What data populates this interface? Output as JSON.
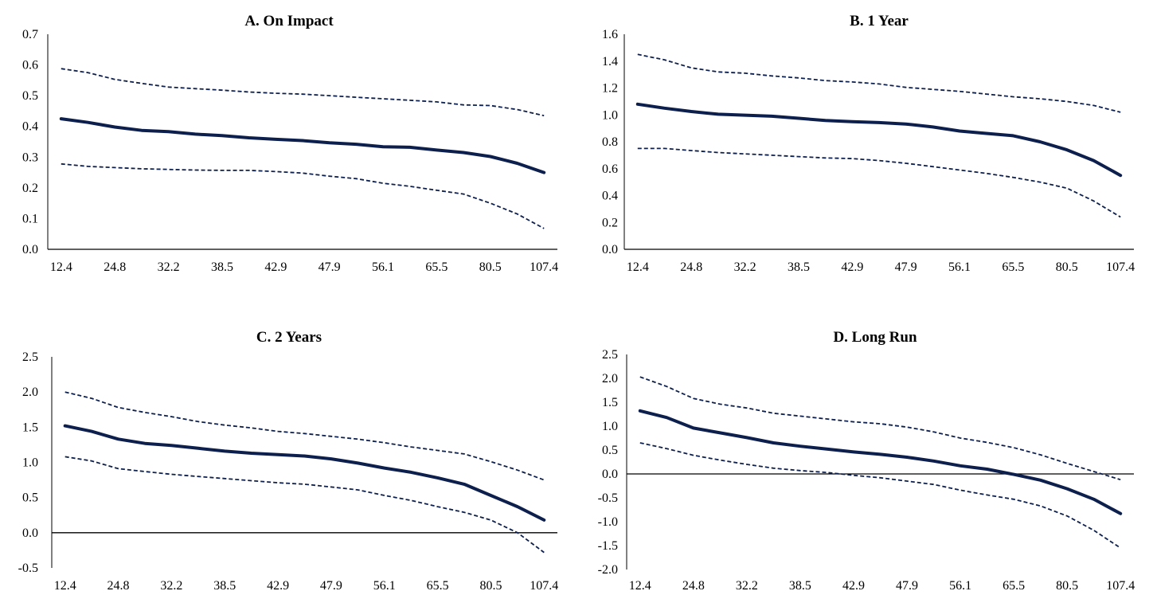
{
  "colors": {
    "line": "#0d1f4d",
    "axis": "#000000"
  },
  "chart_data": [
    {
      "type": "line",
      "title": "A. On Impact",
      "x": [
        "12.4",
        "18.8",
        "24.8",
        "28.7",
        "32.2",
        "35.6",
        "38.5",
        "40.8",
        "42.9",
        "45.0",
        "47.9",
        "51.4",
        "56.1",
        "60.4",
        "65.5",
        "72.3",
        "80.5",
        "90.4",
        "107.4"
      ],
      "x_tick_labels": [
        "12.4",
        "24.8",
        "32.2",
        "38.5",
        "42.9",
        "47.9",
        "56.1",
        "65.5",
        "80.5",
        "107.4"
      ],
      "ylim": [
        0,
        0.7
      ],
      "y_ticks": [
        "0.0",
        "0.1",
        "0.2",
        "0.3",
        "0.4",
        "0.5",
        "0.6",
        "0.7"
      ],
      "y_tick_values": [
        0,
        0.1,
        0.2,
        0.3,
        0.4,
        0.5,
        0.6,
        0.7
      ],
      "zero_line": false,
      "series": [
        {
          "style": "solid",
          "values": [
            0.425,
            0.413,
            0.398,
            0.387,
            0.383,
            0.375,
            0.37,
            0.363,
            0.358,
            0.354,
            0.347,
            0.342,
            0.334,
            0.332,
            0.323,
            0.315,
            0.302,
            0.28,
            0.25
          ]
        },
        {
          "style": "dashed",
          "values": [
            0.588,
            0.575,
            0.553,
            0.54,
            0.528,
            0.523,
            0.518,
            0.512,
            0.508,
            0.505,
            0.5,
            0.495,
            0.49,
            0.485,
            0.48,
            0.47,
            0.468,
            0.455,
            0.435
          ]
        },
        {
          "style": "dashed",
          "values": [
            0.278,
            0.27,
            0.266,
            0.262,
            0.26,
            0.258,
            0.257,
            0.257,
            0.253,
            0.248,
            0.238,
            0.23,
            0.215,
            0.205,
            0.192,
            0.18,
            0.15,
            0.115,
            0.068
          ]
        }
      ]
    },
    {
      "type": "line",
      "title": "B. 1 Year",
      "x": [
        "12.4",
        "18.8",
        "24.8",
        "28.7",
        "32.2",
        "35.6",
        "38.5",
        "40.8",
        "42.9",
        "45.0",
        "47.9",
        "51.4",
        "56.1",
        "60.4",
        "65.5",
        "72.3",
        "80.5",
        "90.4",
        "107.4"
      ],
      "x_tick_labels": [
        "12.4",
        "24.8",
        "32.2",
        "38.5",
        "42.9",
        "47.9",
        "56.1",
        "65.5",
        "80.5",
        "107.4"
      ],
      "ylim": [
        0,
        1.6
      ],
      "y_ticks": [
        "0.0",
        "0.2",
        "0.4",
        "0.6",
        "0.8",
        "1.0",
        "1.2",
        "1.4",
        "1.6"
      ],
      "y_tick_values": [
        0,
        0.2,
        0.4,
        0.6,
        0.8,
        1.0,
        1.2,
        1.4,
        1.6
      ],
      "zero_line": false,
      "series": [
        {
          "style": "solid",
          "values": [
            1.08,
            1.05,
            1.025,
            1.005,
            0.998,
            0.99,
            0.975,
            0.958,
            0.95,
            0.943,
            0.932,
            0.91,
            0.88,
            0.862,
            0.845,
            0.8,
            0.74,
            0.66,
            0.55
          ]
        },
        {
          "style": "dashed",
          "values": [
            1.45,
            1.41,
            1.35,
            1.32,
            1.31,
            1.29,
            1.275,
            1.255,
            1.245,
            1.23,
            1.205,
            1.19,
            1.175,
            1.155,
            1.135,
            1.12,
            1.1,
            1.07,
            1.02
          ]
        },
        {
          "style": "dashed",
          "values": [
            0.75,
            0.75,
            0.735,
            0.72,
            0.71,
            0.7,
            0.69,
            0.68,
            0.675,
            0.66,
            0.64,
            0.615,
            0.59,
            0.565,
            0.535,
            0.5,
            0.455,
            0.36,
            0.24
          ]
        }
      ]
    },
    {
      "type": "line",
      "title": "C. 2 Years",
      "x": [
        "12.4",
        "18.8",
        "24.8",
        "28.7",
        "32.2",
        "35.6",
        "38.5",
        "40.8",
        "42.9",
        "45.0",
        "47.9",
        "51.4",
        "56.1",
        "60.4",
        "65.5",
        "72.3",
        "80.5",
        "90.4",
        "107.4"
      ],
      "x_tick_labels": [
        "12.4",
        "24.8",
        "32.2",
        "38.5",
        "42.9",
        "47.9",
        "56.1",
        "65.5",
        "80.5",
        "107.4"
      ],
      "ylim": [
        -0.5,
        2.5
      ],
      "y_ticks": [
        "-0.5",
        "0.0",
        "0.5",
        "1.0",
        "1.5",
        "2.0",
        "2.5"
      ],
      "y_tick_values": [
        -0.5,
        0,
        0.5,
        1.0,
        1.5,
        2.0,
        2.5
      ],
      "zero_line": true,
      "series": [
        {
          "style": "solid",
          "values": [
            1.52,
            1.44,
            1.33,
            1.27,
            1.24,
            1.2,
            1.16,
            1.13,
            1.11,
            1.09,
            1.05,
            0.99,
            0.92,
            0.86,
            0.78,
            0.69,
            0.53,
            0.37,
            0.18
          ]
        },
        {
          "style": "dashed",
          "values": [
            2.0,
            1.91,
            1.78,
            1.71,
            1.65,
            1.58,
            1.53,
            1.49,
            1.44,
            1.41,
            1.37,
            1.33,
            1.28,
            1.22,
            1.17,
            1.12,
            1.01,
            0.89,
            0.75
          ]
        },
        {
          "style": "dashed",
          "values": [
            1.08,
            1.02,
            0.91,
            0.87,
            0.83,
            0.8,
            0.77,
            0.74,
            0.71,
            0.69,
            0.65,
            0.61,
            0.53,
            0.46,
            0.37,
            0.29,
            0.18,
            0.0,
            -0.28
          ]
        }
      ]
    },
    {
      "type": "line",
      "title": "D. Long  Run",
      "x": [
        "12.4",
        "18.8",
        "24.8",
        "28.7",
        "32.2",
        "35.6",
        "38.5",
        "40.8",
        "42.9",
        "45.0",
        "47.9",
        "51.4",
        "56.1",
        "60.4",
        "65.5",
        "72.3",
        "80.5",
        "90.4",
        "107.4"
      ],
      "x_tick_labels": [
        "12.4",
        "24.8",
        "32.2",
        "38.5",
        "42.9",
        "47.9",
        "56.1",
        "65.5",
        "80.5",
        "107.4"
      ],
      "ylim": [
        -2.0,
        2.5
      ],
      "y_ticks": [
        "-2.0",
        "-1.5",
        "-1.0",
        "-0.5",
        "0.0",
        "0.5",
        "1.0",
        "1.5",
        "2.0",
        "2.5"
      ],
      "y_tick_values": [
        -2.0,
        -1.5,
        -1.0,
        -0.5,
        0,
        0.5,
        1.0,
        1.5,
        2.0,
        2.5
      ],
      "zero_line": true,
      "series": [
        {
          "style": "solid",
          "values": [
            1.32,
            1.18,
            0.96,
            0.86,
            0.76,
            0.65,
            0.58,
            0.52,
            0.46,
            0.41,
            0.35,
            0.27,
            0.17,
            0.1,
            -0.01,
            -0.13,
            -0.31,
            -0.53,
            -0.83
          ]
        },
        {
          "style": "dashed",
          "values": [
            2.03,
            1.83,
            1.58,
            1.46,
            1.38,
            1.27,
            1.21,
            1.15,
            1.09,
            1.05,
            0.98,
            0.88,
            0.75,
            0.66,
            0.55,
            0.4,
            0.22,
            0.05,
            -0.12
          ]
        },
        {
          "style": "dashed",
          "values": [
            0.65,
            0.53,
            0.39,
            0.29,
            0.2,
            0.12,
            0.07,
            0.03,
            -0.03,
            -0.08,
            -0.15,
            -0.22,
            -0.34,
            -0.44,
            -0.53,
            -0.67,
            -0.88,
            -1.18,
            -1.55
          ]
        }
      ]
    }
  ]
}
